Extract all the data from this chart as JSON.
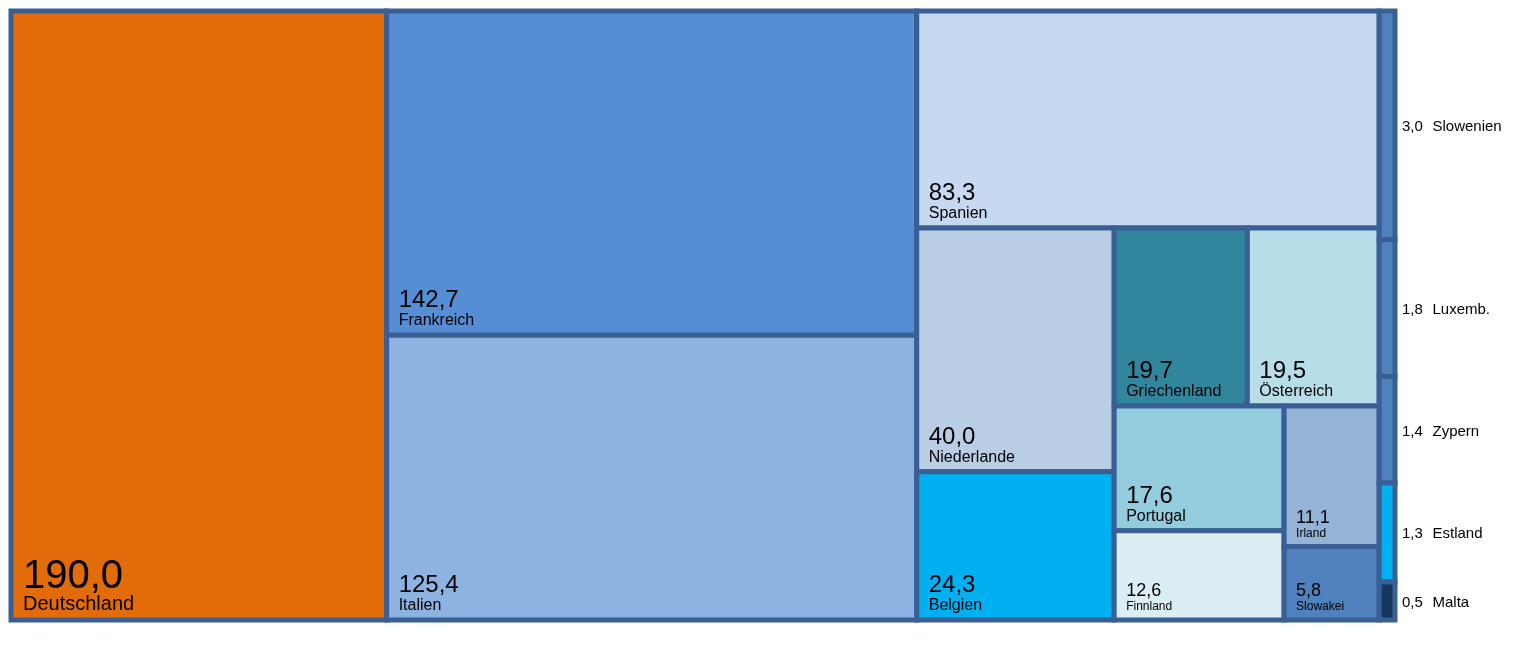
{
  "chart_data": {
    "type": "other",
    "categories": [
      "Deutschland",
      "Frankreich",
      "Italien",
      "Spanien",
      "Niederlande",
      "Belgien",
      "Griechenland",
      "Österreich",
      "Portugal",
      "Finnland",
      "Irland",
      "Slowakei",
      "Slowenien",
      "Luxemb.",
      "Zypern",
      "Estland",
      "Malta"
    ],
    "values": [
      190.0,
      142.7,
      125.4,
      83.3,
      40.0,
      24.3,
      19.7,
      19.5,
      17.6,
      12.6,
      11.1,
      5.8,
      3.0,
      1.8,
      1.4,
      1.3,
      0.5
    ],
    "value_labels": [
      "190,0",
      "142,7",
      "125,4",
      "83,3",
      "40,0",
      "24,3",
      "19,7",
      "19,5",
      "17,6",
      "12,6",
      "11,1",
      "5,8",
      "3,0",
      "1,8",
      "1,4",
      "1,3",
      "0,5"
    ],
    "colors": [
      "#e36c0a",
      "#558ed5",
      "#8db3e2",
      "#c6d9f1",
      "#b9cde5",
      "#00b0f0",
      "#31859c",
      "#b7dee8",
      "#93cddd",
      "#dbeef4",
      "#95b3d7",
      "#4f81bd",
      "#4f81bd",
      "#4f81bd",
      "#4f81bd",
      "#00b0f0",
      "#17375e"
    ]
  }
}
